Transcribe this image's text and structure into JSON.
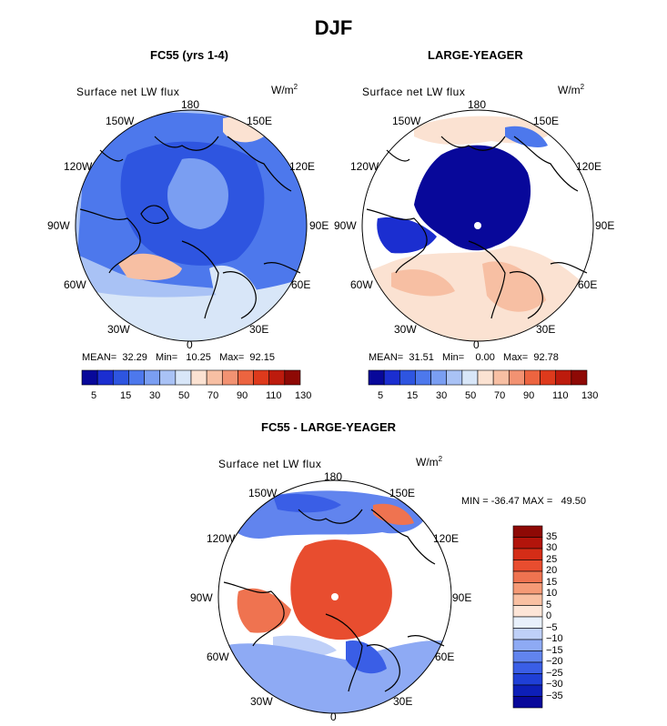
{
  "title": "DJF",
  "variable": "Surface net LW flux",
  "units": "W/m",
  "units_exp": "2",
  "longitudes": [
    "180",
    "150E",
    "120E",
    "90E",
    "60E",
    "30E",
    "0",
    "30W",
    "60W",
    "90W",
    "120W",
    "150W"
  ],
  "colors": {
    "scale13": [
      "#08089a",
      "#1b2ed0",
      "#2e55e0",
      "#4d78ec",
      "#7a9ef2",
      "#a9c2f5",
      "#d8e6f8",
      "#fbe2d2",
      "#f7bfa3",
      "#f29272",
      "#ec6440",
      "#de3a1c",
      "#bd1b0d",
      "#8e0905"
    ],
    "diff16": [
      "#08089a",
      "#0d1fb8",
      "#1f3fd6",
      "#3a5ee6",
      "#6184ee",
      "#8eaaf4",
      "#bfd0f8",
      "#e8f0fb",
      "#fde5d7",
      "#f9c0a2",
      "#f59a76",
      "#ef7350",
      "#e84d2f",
      "#d42d17",
      "#b2140b",
      "#8e0905"
    ]
  },
  "panels": [
    {
      "id": "fc55",
      "title": "FC55 (yrs 1-4)",
      "stats": {
        "mean_label": "MEAN=",
        "mean": "32.29",
        "min_label": "Min=",
        "min": "10.25",
        "max_label": "Max=",
        "max": "92.15"
      },
      "colorbar_ticks": [
        "5",
        "15",
        "30",
        "50",
        "70",
        "90",
        "110",
        "130"
      ]
    },
    {
      "id": "large-yeager",
      "title": "LARGE-YEAGER",
      "stats": {
        "mean_label": "MEAN=",
        "mean": "31.51",
        "min_label": "Min=",
        "min": "0.00",
        "max_label": "Max=",
        "max": "92.78"
      },
      "colorbar_ticks": [
        "5",
        "15",
        "30",
        "50",
        "70",
        "90",
        "110",
        "130"
      ]
    },
    {
      "id": "difference",
      "title": "FC55 - LARGE-YEAGER",
      "stats": {
        "min_label": "MIN =",
        "min": "-36.47",
        "max_label": "MAX =",
        "max": "49.50"
      },
      "colorbar_ticks": [
        "35",
        "30",
        "25",
        "20",
        "15",
        "10",
        "5",
        "0",
        "−5",
        "−10",
        "−15",
        "−20",
        "−25",
        "−30",
        "−35"
      ]
    }
  ]
}
